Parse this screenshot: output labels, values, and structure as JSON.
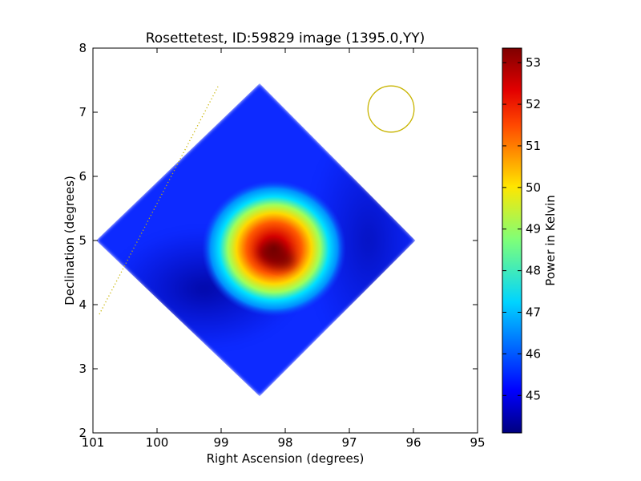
{
  "chart_data": {
    "type": "heatmap",
    "title": "Rosettetest, ID:59829 image (1395.0,YY)",
    "xlabel": "Right Ascension (degrees)",
    "ylabel": "Declination (degrees)",
    "xlim": [
      101,
      95
    ],
    "ylim": [
      2,
      8
    ],
    "x_ticks": [
      "101",
      "100",
      "99",
      "98",
      "97",
      "96",
      "95"
    ],
    "y_ticks": [
      "2",
      "3",
      "4",
      "5",
      "6",
      "7",
      "8"
    ],
    "x_tick_values": [
      101,
      100,
      99,
      98,
      97,
      96,
      95
    ],
    "y_tick_values": [
      2,
      3,
      4,
      5,
      6,
      7,
      8
    ],
    "colorbar": {
      "label": "Power in Kelvin",
      "range": [
        44.1,
        53.35
      ],
      "ticks": [
        "45",
        "46",
        "47",
        "48",
        "49",
        "50",
        "51",
        "52",
        "53"
      ],
      "tick_values": [
        45,
        46,
        47,
        48,
        49,
        50,
        51,
        52,
        53
      ],
      "colormap": "jet"
    },
    "map": {
      "shape": "diamond",
      "vertices_deg": [
        [
          98.4,
          7.45
        ],
        [
          95.97,
          5.0
        ],
        [
          98.4,
          2.57
        ],
        [
          100.95,
          5.0
        ]
      ],
      "background_level": 45.5
    },
    "hotspot": {
      "peak_ra": 98.05,
      "peak_dec": 4.8,
      "peak_value": 53.3
    },
    "overlays": [
      {
        "kind": "circle",
        "center_ra": 96.35,
        "center_dec": 7.05,
        "radius_deg": 0.36,
        "color": "#c8b400"
      },
      {
        "kind": "dotted-line",
        "from": [
          100.9,
          3.85
        ],
        "to": [
          99.05,
          7.4
        ],
        "color": "#c8b400"
      }
    ]
  }
}
